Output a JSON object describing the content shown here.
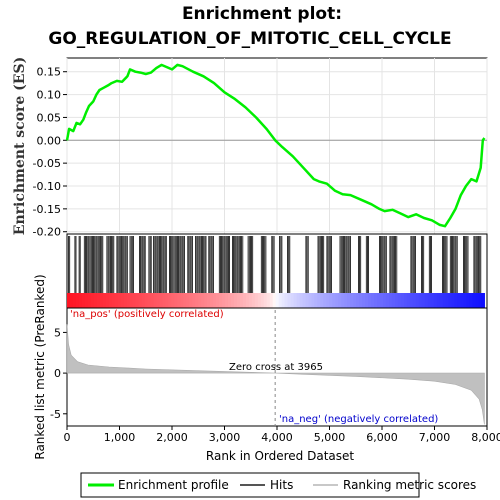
{
  "title_line1": "Enrichment plot:",
  "title_line2": "GO_REGULATION_OF_MITOTIC_CELL_CYCLE",
  "es_ylabel": "Enrichment score (ES)",
  "rank_ylabel": "Ranked list metric (PreRanked)",
  "xlabel": "Rank in Ordered Dataset",
  "pos_label": "'na_pos' (positively correlated)",
  "neg_label": "'na_neg' (negatively correlated)",
  "zero_cross_label": "Zero cross at 3965",
  "legend": {
    "profile": "Enrichment profile",
    "hits": "Hits",
    "metric": "Ranking metric scores"
  },
  "colors": {
    "profile": "#00ee00",
    "hits": "#000000",
    "pos_text": "#dd0000",
    "neg_text": "#0000cc",
    "metric_fill": "#c0c0c0"
  },
  "chart_data": {
    "type": "line",
    "total_rank": 7950,
    "zero_cross": 3965,
    "x_ticks": [
      0,
      1000,
      2000,
      3000,
      4000,
      5000,
      6000,
      7000,
      8000
    ],
    "x_tick_labels": [
      "0",
      "1,000",
      "2,000",
      "3,000",
      "4,000",
      "5,000",
      "6,000",
      "7,000",
      "8,000"
    ],
    "es_yticks": [
      0.15,
      0.1,
      0.05,
      0.0,
      -0.05,
      -0.1,
      -0.15,
      -0.2
    ],
    "es_ytick_labels": [
      "0.15",
      "0.10",
      "0.05",
      "0.00",
      "-0.05",
      "-0.10",
      "-0.15",
      "-0.20"
    ],
    "es_ylim": [
      -0.205,
      0.18
    ],
    "metric_yticks": [
      5,
      0,
      -5
    ],
    "metric_ylim": [
      -6.5,
      8
    ],
    "es_profile": [
      [
        0,
        0.0
      ],
      [
        40,
        0.025
      ],
      [
        120,
        0.02
      ],
      [
        180,
        0.038
      ],
      [
        250,
        0.035
      ],
      [
        310,
        0.045
      ],
      [
        360,
        0.06
      ],
      [
        420,
        0.075
      ],
      [
        500,
        0.085
      ],
      [
        560,
        0.1
      ],
      [
        620,
        0.11
      ],
      [
        700,
        0.115
      ],
      [
        780,
        0.12
      ],
      [
        850,
        0.125
      ],
      [
        950,
        0.13
      ],
      [
        1050,
        0.128
      ],
      [
        1150,
        0.14
      ],
      [
        1200,
        0.155
      ],
      [
        1300,
        0.15
      ],
      [
        1400,
        0.148
      ],
      [
        1500,
        0.145
      ],
      [
        1600,
        0.148
      ],
      [
        1700,
        0.158
      ],
      [
        1800,
        0.165
      ],
      [
        1900,
        0.16
      ],
      [
        2000,
        0.155
      ],
      [
        2100,
        0.165
      ],
      [
        2200,
        0.162
      ],
      [
        2400,
        0.15
      ],
      [
        2600,
        0.14
      ],
      [
        2800,
        0.125
      ],
      [
        3000,
        0.105
      ],
      [
        3200,
        0.09
      ],
      [
        3400,
        0.072
      ],
      [
        3600,
        0.05
      ],
      [
        3800,
        0.025
      ],
      [
        3965,
        0.0
      ],
      [
        4100,
        -0.015
      ],
      [
        4300,
        -0.035
      ],
      [
        4500,
        -0.06
      ],
      [
        4700,
        -0.085
      ],
      [
        4800,
        -0.09
      ],
      [
        4950,
        -0.095
      ],
      [
        5100,
        -0.11
      ],
      [
        5250,
        -0.118
      ],
      [
        5400,
        -0.12
      ],
      [
        5600,
        -0.13
      ],
      [
        5800,
        -0.14
      ],
      [
        5950,
        -0.15
      ],
      [
        6050,
        -0.155
      ],
      [
        6200,
        -0.152
      ],
      [
        6350,
        -0.16
      ],
      [
        6500,
        -0.168
      ],
      [
        6650,
        -0.162
      ],
      [
        6800,
        -0.17
      ],
      [
        6950,
        -0.175
      ],
      [
        7100,
        -0.185
      ],
      [
        7200,
        -0.188
      ],
      [
        7300,
        -0.17
      ],
      [
        7400,
        -0.15
      ],
      [
        7500,
        -0.12
      ],
      [
        7600,
        -0.1
      ],
      [
        7700,
        -0.085
      ],
      [
        7800,
        -0.09
      ],
      [
        7880,
        -0.06
      ],
      [
        7920,
        0.0
      ],
      [
        7950,
        0.005
      ]
    ],
    "hit_segments": [
      [
        30,
        60
      ],
      [
        150,
        180
      ],
      [
        230,
        260
      ],
      [
        330,
        700
      ],
      [
        760,
        900
      ],
      [
        950,
        1150
      ],
      [
        1200,
        1280
      ],
      [
        1380,
        1500
      ],
      [
        1560,
        1620
      ],
      [
        1650,
        1900
      ],
      [
        1950,
        2250
      ],
      [
        2300,
        2400
      ],
      [
        2450,
        2650
      ],
      [
        2700,
        2800
      ],
      [
        2900,
        3100
      ],
      [
        3150,
        3350
      ],
      [
        3450,
        3550
      ],
      [
        3700,
        3800
      ],
      [
        3900,
        3950
      ],
      [
        4050,
        4100
      ],
      [
        4200,
        4250
      ],
      [
        4550,
        4600
      ],
      [
        4780,
        4900
      ],
      [
        4950,
        5050
      ],
      [
        5200,
        5400
      ],
      [
        5550,
        5600
      ],
      [
        5700,
        5750
      ],
      [
        5950,
        6100
      ],
      [
        6150,
        6300
      ],
      [
        6550,
        6650
      ],
      [
        6750,
        6800
      ],
      [
        6900,
        6950
      ],
      [
        7150,
        7250
      ],
      [
        7300,
        7450
      ],
      [
        7550,
        7650
      ],
      [
        7750,
        7900
      ]
    ],
    "metric_profile": [
      [
        0,
        6.0
      ],
      [
        30,
        3.5
      ],
      [
        80,
        2.2
      ],
      [
        200,
        1.4
      ],
      [
        400,
        1.0
      ],
      [
        800,
        0.75
      ],
      [
        1500,
        0.5
      ],
      [
        2500,
        0.3
      ],
      [
        3500,
        0.1
      ],
      [
        3965,
        0.0
      ],
      [
        4500,
        -0.15
      ],
      [
        5500,
        -0.4
      ],
      [
        6500,
        -0.75
      ],
      [
        7000,
        -1.0
      ],
      [
        7400,
        -1.4
      ],
      [
        7700,
        -2.1
      ],
      [
        7850,
        -3.2
      ],
      [
        7910,
        -4.5
      ],
      [
        7950,
        -6.3
      ]
    ]
  }
}
